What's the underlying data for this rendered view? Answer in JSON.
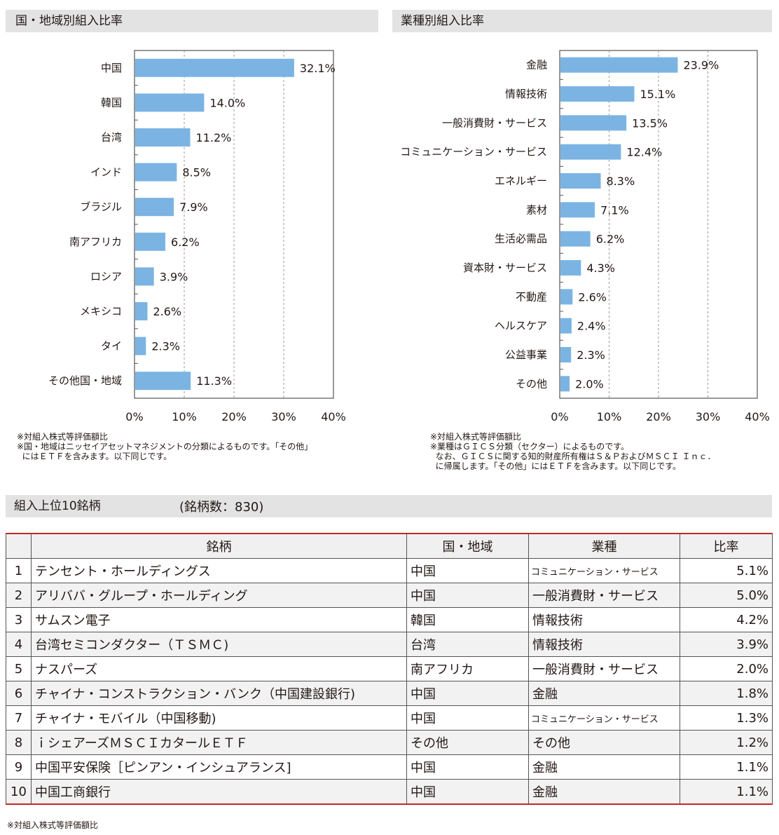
{
  "country_section": {
    "title": "国・地域別組入比率"
  },
  "sector_section": {
    "title": "業種別組入比率"
  },
  "chart_data": [
    {
      "type": "bar",
      "orientation": "horizontal",
      "title": "国・地域別組入比率",
      "categories": [
        "中国",
        "韓国",
        "台湾",
        "インド",
        "ブラジル",
        "南アフリカ",
        "ロシア",
        "メキシコ",
        "タイ",
        "その他国・地域"
      ],
      "values": [
        32.1,
        14.0,
        11.2,
        8.5,
        7.9,
        6.2,
        3.9,
        2.6,
        2.3,
        11.3
      ],
      "value_labels": [
        "32.1%",
        "14.0%",
        "11.2%",
        "8.5%",
        "7.9%",
        "6.2%",
        "3.9%",
        "2.6%",
        "2.3%",
        "11.3%"
      ],
      "xlim": [
        0,
        40
      ],
      "ticks": [
        "0%",
        "10%",
        "20%",
        "30%",
        "40%"
      ],
      "bar_color": "#7bb4e3",
      "grid": "dashed vertical"
    },
    {
      "type": "bar",
      "orientation": "horizontal",
      "title": "業種別組入比率",
      "categories": [
        "金融",
        "情報技術",
        "一般消費財・サービス",
        "コミュニケーション・サービス",
        "エネルギー",
        "素材",
        "生活必需品",
        "資本財・サービス",
        "不動産",
        "ヘルスケア",
        "公益事業",
        "その他"
      ],
      "values": [
        23.9,
        15.1,
        13.5,
        12.4,
        8.3,
        7.1,
        6.2,
        4.3,
        2.6,
        2.4,
        2.3,
        2.0
      ],
      "value_labels": [
        "23.9%",
        "15.1%",
        "13.5%",
        "12.4%",
        "8.3%",
        "7.1%",
        "6.2%",
        "4.3%",
        "2.6%",
        "2.4%",
        "2.3%",
        "2.0%"
      ],
      "xlim": [
        0,
        40
      ],
      "ticks": [
        "0%",
        "10%",
        "20%",
        "30%",
        "40%"
      ],
      "bar_color": "#7bb4e3",
      "grid": "dashed vertical"
    }
  ],
  "country_notes": {
    "line1": "※対組入株式等評価額比",
    "line2": "※国・地域はニッセイアセットマネジメントの分類によるものです。「その他」",
    "line3": "  にはＥＴＦを含みます。以下同じです。"
  },
  "sector_notes": {
    "line1": "※対組入株式等評価額比",
    "line2": "※業種はＧＩＣＳ分類（セクター）によるものです。",
    "line3": "  なお、ＧＩＣＳに関する知的財産所有権はＳ＆ＰおよびＭＳＣＩ Ｉｎｃ．",
    "line4": "  に帰属します。「その他」にはＥＴＦを含みます。以下同じです。"
  },
  "top10": {
    "title": "組入上位10銘柄",
    "count_label": "(銘柄数：830)",
    "headers": {
      "name": "銘柄",
      "country": "国・地域",
      "sector": "業種",
      "weight": "比率"
    },
    "rows": [
      {
        "rank": "1",
        "name": "テンセント・ホールディングス",
        "country": "中国",
        "sector": "コミュニケーション・サービス",
        "weight": "5.1%"
      },
      {
        "rank": "2",
        "name": "アリババ・グループ・ホールディング",
        "country": "中国",
        "sector": "一般消費財・サービス",
        "weight": "5.0%"
      },
      {
        "rank": "3",
        "name": "サムスン電子",
        "country": "韓国",
        "sector": "情報技術",
        "weight": "4.2%"
      },
      {
        "rank": "4",
        "name": "台湾セミコンダクター（ＴＳＭＣ)",
        "country": "台湾",
        "sector": "情報技術",
        "weight": "3.9%"
      },
      {
        "rank": "5",
        "name": "ナスパーズ",
        "country": "南アフリカ",
        "sector": "一般消費財・サービス",
        "weight": "2.0%"
      },
      {
        "rank": "6",
        "name": "チャイナ・コンストラクション・バンク（中国建設銀行)",
        "country": "中国",
        "sector": "金融",
        "weight": "1.8%"
      },
      {
        "rank": "7",
        "name": "チャイナ・モバイル（中国移動)",
        "country": "中国",
        "sector": "コミュニケーション・サービス",
        "weight": "1.3%"
      },
      {
        "rank": "8",
        "name": "ｉシェアーズＭＳＣＩカタールＥＴＦ",
        "country": "その他",
        "sector": "その他",
        "weight": "1.2%"
      },
      {
        "rank": "9",
        "name": "中国平安保険［ピンアン・インシュアランス]",
        "country": "中国",
        "sector": "金融",
        "weight": "1.1%"
      },
      {
        "rank": "10",
        "name": "中国工商銀行",
        "country": "中国",
        "sector": "金融",
        "weight": "1.1%"
      }
    ],
    "footnote": "※対組入株式等評価額比"
  }
}
